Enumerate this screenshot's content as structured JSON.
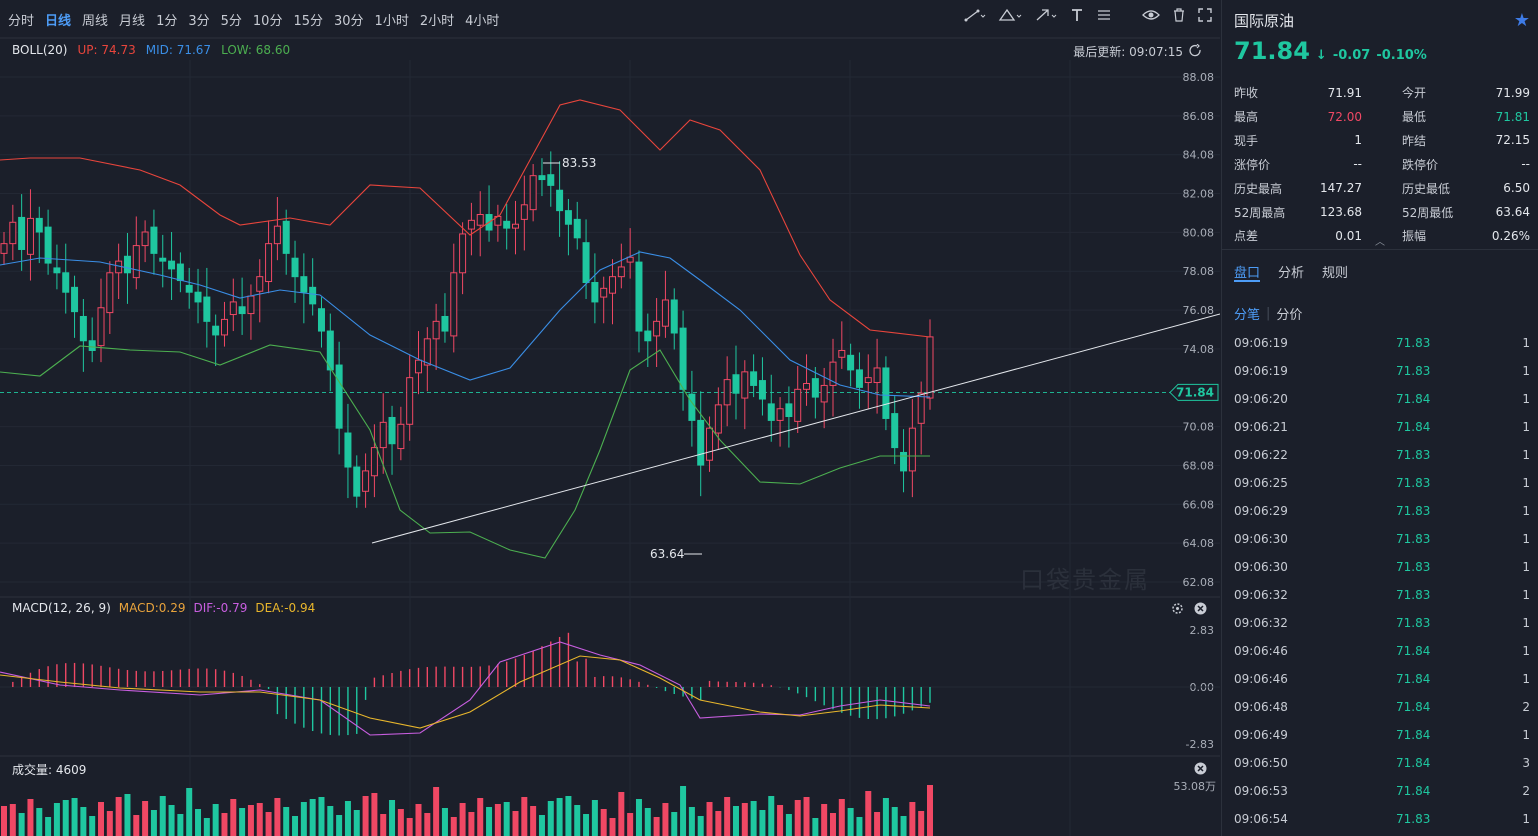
{
  "timeframes": [
    "分时",
    "日线",
    "周线",
    "月线",
    "1分",
    "3分",
    "5分",
    "10分",
    "15分",
    "30分",
    "1小时",
    "2小时",
    "4小时"
  ],
  "active_timeframe": "日线",
  "boll": {
    "name": "BOLL(20)",
    "up": "UP: 74.73",
    "mid": "MID: 71.67",
    "low": "LOW: 68.60"
  },
  "last_update": "最后更新: 09:07:15",
  "price_axis": [
    "88.08",
    "86.08",
    "84.08",
    "82.08",
    "80.08",
    "78.08",
    "76.08",
    "74.08",
    "70.08",
    "68.08",
    "66.08",
    "64.08",
    "62.08"
  ],
  "current_price_tag": "71.84",
  "annotations": {
    "high": "83.53",
    "low": "63.64"
  },
  "watermark": "口袋贵金属",
  "macd": {
    "name": "MACD(12, 26, 9)",
    "macd": "MACD:0.29",
    "dif": "DIF:-0.79",
    "dea": "DEA:-0.94",
    "axis": [
      "2.83",
      "0.00",
      "-2.83"
    ]
  },
  "volume": {
    "label": "成交量: 4609",
    "axis": "53.08万"
  },
  "colors": {
    "up": "#f04864",
    "down": "#1fc7a0",
    "boll_up": "#e8453c",
    "boll_mid": "#3a8ee6",
    "boll_low": "#4caf50",
    "dif": "#c85ee0",
    "dea": "#e8b62c",
    "accent": "#4d9cf6"
  },
  "quote": {
    "name": "国际原油",
    "price": "71.84",
    "change": "-0.07",
    "change_pct": "-0.10%",
    "stats": [
      {
        "k": "昨收",
        "v": "71.91",
        "c": ""
      },
      {
        "k": "今开",
        "v": "71.99",
        "c": ""
      },
      {
        "k": "最高",
        "v": "72.00",
        "c": "up"
      },
      {
        "k": "最低",
        "v": "71.81",
        "c": "down"
      },
      {
        "k": "现手",
        "v": "1",
        "c": ""
      },
      {
        "k": "昨结",
        "v": "72.15",
        "c": ""
      },
      {
        "k": "涨停价",
        "v": "--",
        "c": ""
      },
      {
        "k": "跌停价",
        "v": "--",
        "c": ""
      },
      {
        "k": "历史最高",
        "v": "147.27",
        "c": ""
      },
      {
        "k": "历史最低",
        "v": "6.50",
        "c": ""
      },
      {
        "k": "52周最高",
        "v": "123.68",
        "c": ""
      },
      {
        "k": "52周最低",
        "v": "63.64",
        "c": ""
      },
      {
        "k": "点差",
        "v": "0.01",
        "c": ""
      },
      {
        "k": "振幅",
        "v": "0.26%",
        "c": ""
      }
    ]
  },
  "tabs": [
    "盘口",
    "分析",
    "规则"
  ],
  "subtabs": [
    "分笔",
    "分价"
  ],
  "trades": [
    [
      "09:06:19",
      "71.83",
      "1"
    ],
    [
      "09:06:19",
      "71.83",
      "1"
    ],
    [
      "09:06:20",
      "71.84",
      "1"
    ],
    [
      "09:06:21",
      "71.84",
      "1"
    ],
    [
      "09:06:22",
      "71.83",
      "1"
    ],
    [
      "09:06:25",
      "71.83",
      "1"
    ],
    [
      "09:06:29",
      "71.83",
      "1"
    ],
    [
      "09:06:30",
      "71.83",
      "1"
    ],
    [
      "09:06:30",
      "71.83",
      "1"
    ],
    [
      "09:06:32",
      "71.83",
      "1"
    ],
    [
      "09:06:32",
      "71.83",
      "1"
    ],
    [
      "09:06:46",
      "71.84",
      "1"
    ],
    [
      "09:06:46",
      "71.84",
      "1"
    ],
    [
      "09:06:48",
      "71.84",
      "2"
    ],
    [
      "09:06:49",
      "71.84",
      "1"
    ],
    [
      "09:06:50",
      "71.84",
      "3"
    ],
    [
      "09:06:53",
      "71.84",
      "2"
    ],
    [
      "09:06:54",
      "71.83",
      "1"
    ]
  ]
}
